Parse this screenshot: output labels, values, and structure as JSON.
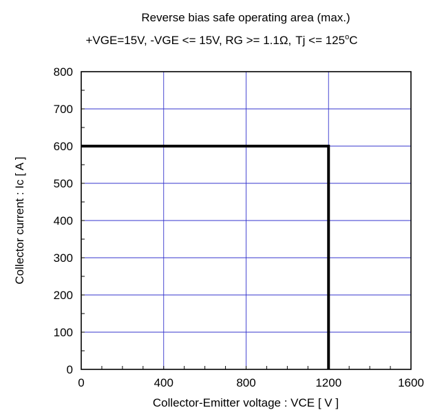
{
  "chart_data": {
    "type": "line",
    "title": "Reverse bias safe operating area (max.)",
    "subtitle_parts": {
      "main": "+VGE=15V, -VGE <= 15V, RG >= 1.1Ω,",
      "tj": "Tj <= 125",
      "deg": "o",
      "unit": "C"
    },
    "xlabel": "Collector-Emitter voltage : VCE [ V ]",
    "ylabel": "Collector current : Ic [ A ]",
    "xlim": [
      0,
      1600
    ],
    "ylim": [
      0,
      800
    ],
    "xticks": [
      "0",
      "400",
      "800",
      "1200",
      "1600"
    ],
    "yticks": [
      "0",
      "100",
      "200",
      "300",
      "400",
      "500",
      "600",
      "700",
      "800"
    ],
    "grid": true,
    "colors": {
      "grid": "#3333cc",
      "line": "#000000"
    },
    "series": [
      {
        "x": [
          0,
          1200,
          1200
        ],
        "y": [
          600,
          600,
          0
        ]
      }
    ]
  }
}
